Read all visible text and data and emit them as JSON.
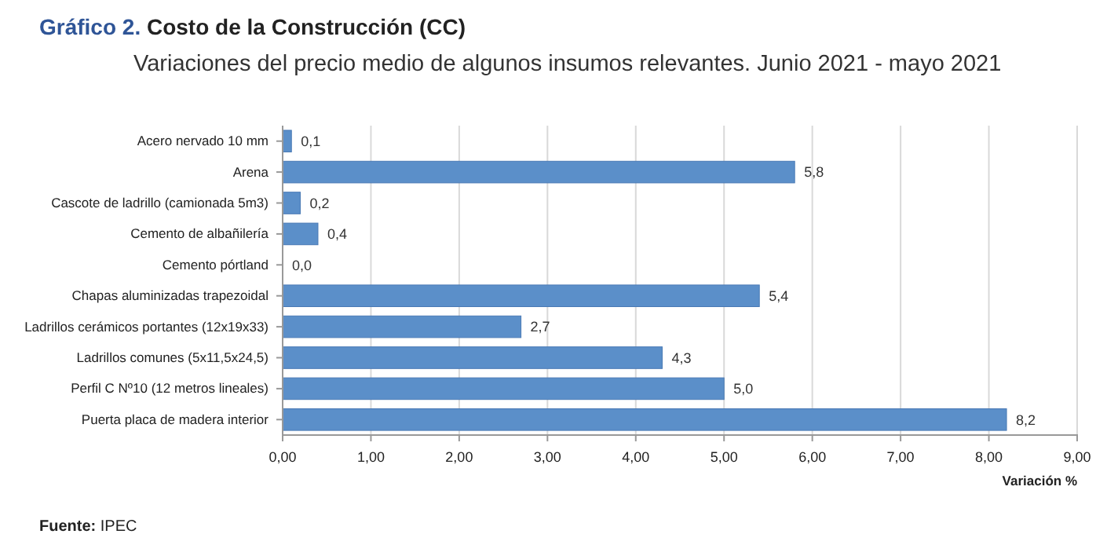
{
  "chart_data": {
    "type": "bar",
    "orientation": "horizontal",
    "title": "Gráfico 2. Costo de la Construcción (CC)",
    "subtitle": "Variaciones del precio medio de algunos insumos relevantes. Junio 2021 - mayo 2021",
    "xlabel": "Variación %",
    "categories": [
      "Acero nervado 10 mm",
      "Arena",
      "Cascote de ladrillo (camionada 5m3)",
      "Cemento de albañilería",
      "Cemento pórtland",
      "Chapas aluminizadas trapezoidal",
      "Ladrillos cerámicos portantes (12x19x33)",
      "Ladrillos comunes (5x11,5x24,5)",
      "Perfil C Nº10 (12 metros  lineales)",
      "Puerta placa de madera interior"
    ],
    "values": [
      0.1,
      5.8,
      0.2,
      0.4,
      0.0,
      5.4,
      2.7,
      4.3,
      5.0,
      8.2
    ],
    "value_labels": [
      "0,1",
      "5,8",
      "0,2",
      "0,4",
      "0,0",
      "5,4",
      "2,7",
      "4,3",
      "5,0",
      "8,2"
    ],
    "color": "#5b8fc9",
    "xlim": [
      0,
      9
    ],
    "xticks": [
      {
        "value": 0,
        "label": "0,00"
      },
      {
        "value": 1,
        "label": "1,00"
      },
      {
        "value": 2,
        "label": "2,00"
      },
      {
        "value": 3,
        "label": "3,00"
      },
      {
        "value": 4,
        "label": "4,00"
      },
      {
        "value": 5,
        "label": "5,00"
      },
      {
        "value": 6,
        "label": "6,00"
      },
      {
        "value": 7,
        "label": "7,00"
      },
      {
        "value": 8,
        "label": "8,00"
      },
      {
        "value": 9,
        "label": "9,00"
      }
    ],
    "grid": "x",
    "annotations": [
      "Fuente: IPEC"
    ]
  }
}
